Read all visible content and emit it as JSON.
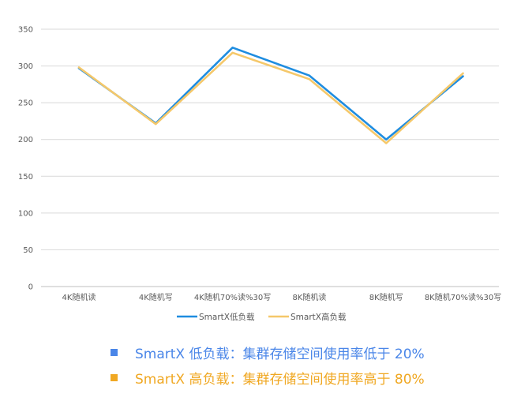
{
  "chart_data": {
    "type": "line",
    "categories": [
      "4K随机读",
      "4K随机写",
      "4K随机70%读%30写",
      "8K随机读",
      "8K随机写",
      "8K随机70%读%30写"
    ],
    "series": [
      {
        "name": "SmartX低负载",
        "values": [
          297,
          222,
          325,
          287,
          200,
          286
        ],
        "color": "#1f8de0"
      },
      {
        "name": "SmartX高负载",
        "values": [
          298,
          221,
          318,
          282,
          195,
          290
        ],
        "color": "#f5c86a"
      }
    ],
    "ylim": [
      0,
      350
    ],
    "yticks": [
      0,
      50,
      100,
      150,
      200,
      250,
      300,
      350
    ],
    "grid": true,
    "legend": "bottom"
  },
  "notes": [
    {
      "text": "SmartX 低负载：集群存储空间使用率低于 20%",
      "color": "#4a86e8"
    },
    {
      "text": "SmartX 高负载：集群存储空间使用率高于 80%",
      "color": "#f0a823"
    }
  ]
}
